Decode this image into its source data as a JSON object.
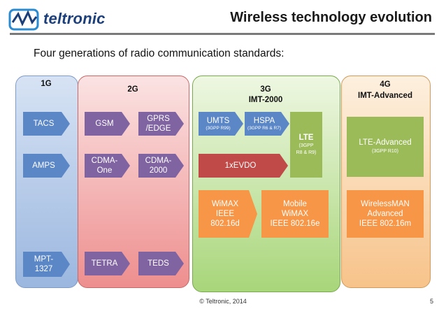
{
  "header": {
    "brand": "teltronic",
    "title": "Wireless technology evolution"
  },
  "subtitle": "Four generations of radio communication standards:",
  "columns": {
    "g1": {
      "label": "1G",
      "items": [
        "TACS",
        "AMPS",
        "MPT-\n1327"
      ]
    },
    "g2": {
      "label": "2G",
      "items": {
        "gsm": "GSM",
        "gprs": "GPRS\n/EDGE",
        "cdmaone": "CDMA-\nOne",
        "cdma2000": "CDMA-\n2000",
        "tetra": "TETRA",
        "teds": "TEDS"
      }
    },
    "g3": {
      "label": "3G",
      "sublabel": "IMT-2000",
      "umts": {
        "name": "UMTS",
        "note": "(3GPP R99)"
      },
      "hspa": {
        "name": "HSPA",
        "note": "(3GPP R6 & R7)"
      },
      "lte": {
        "name": "LTE",
        "note": "(3GPP\nR8 & R9)"
      },
      "evdo": "1xEVDO",
      "wimax": {
        "name": "WiMAX",
        "line2": "IEEE",
        "line3": "802.16d"
      },
      "mobile_wimax": {
        "name": "Mobile\nWiMAX",
        "line3": "IEEE 802.16e"
      }
    },
    "g4": {
      "label": "4G",
      "sublabel": "IMT-Advanced",
      "lte_adv": {
        "name": "LTE-Advanced",
        "note": "(3GPP R10)"
      },
      "wirelessman": {
        "name": "WirelessMAN\nAdvanced",
        "line3": "IEEE 802.16m"
      }
    }
  },
  "footer": {
    "copyright": "© Teltronic, 2014",
    "page": "5"
  },
  "colors": {
    "blue": "#5b87c7",
    "purple": "#8064a2",
    "red": "#bf4a47",
    "orange": "#f79646",
    "green": "#9bbb59"
  }
}
